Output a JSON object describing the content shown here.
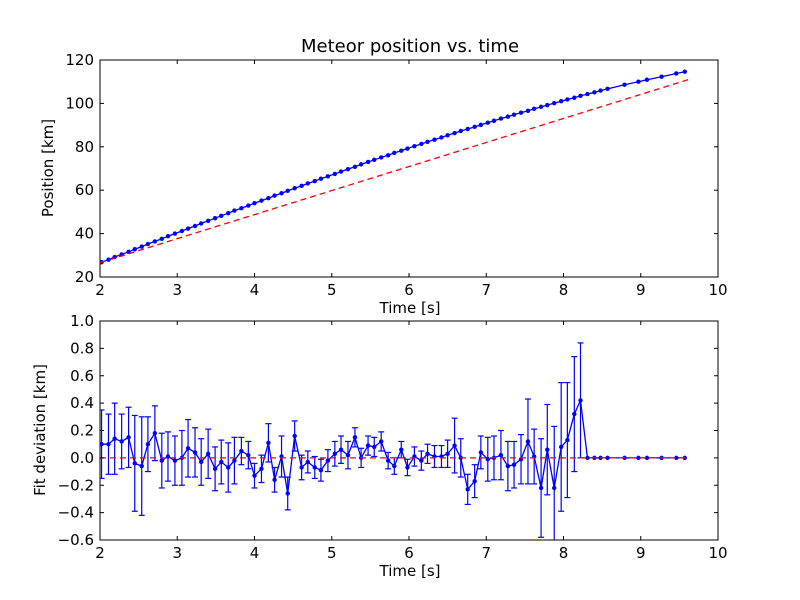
{
  "figure": {
    "background": "#ffffff"
  },
  "chart_data": [
    {
      "type": "line",
      "title": "Meteor position vs. time",
      "xlabel": "Time [s]",
      "ylabel": "Position [km]",
      "xlim": [
        2,
        10
      ],
      "ylim": [
        20,
        120
      ],
      "xticks": [
        "2",
        "3",
        "4",
        "5",
        "6",
        "7",
        "8",
        "9",
        "10"
      ],
      "yticks": [
        "20",
        "40",
        "60",
        "80",
        "100",
        "120"
      ],
      "grid": false,
      "series": [
        {
          "style": "solid line with point markers",
          "color": "#0000ff",
          "x": [
            2.02,
            2.11,
            2.19,
            2.28,
            2.37,
            2.45,
            2.54,
            2.62,
            2.71,
            2.8,
            2.88,
            2.97,
            3.06,
            3.14,
            3.23,
            3.31,
            3.4,
            3.49,
            3.57,
            3.66,
            3.74,
            3.83,
            3.92,
            4.0,
            4.09,
            4.18,
            4.26,
            4.35,
            4.43,
            4.52,
            4.61,
            4.69,
            4.78,
            4.86,
            4.95,
            5.04,
            5.12,
            5.21,
            5.3,
            5.38,
            5.47,
            5.55,
            5.64,
            5.73,
            5.81,
            5.9,
            5.98,
            6.07,
            6.16,
            6.24,
            6.33,
            6.42,
            6.5,
            6.59,
            6.67,
            6.76,
            6.85,
            6.93,
            7.02,
            7.1,
            7.19,
            7.28,
            7.36,
            7.45,
            7.54,
            7.62,
            7.71,
            7.79,
            7.88,
            7.97,
            8.05,
            8.14,
            8.22,
            8.31,
            8.4,
            8.48,
            8.57,
            8.79,
            8.97,
            9.08,
            9.27,
            9.46,
            9.57
          ],
          "y": [
            26.8,
            28.0,
            29.2,
            30.4,
            31.6,
            32.8,
            34.0,
            35.2,
            36.4,
            37.6,
            38.8,
            40.0,
            41.2,
            42.3,
            43.5,
            44.7,
            45.9,
            47.1,
            48.2,
            49.4,
            50.6,
            51.7,
            52.9,
            54.0,
            55.2,
            56.3,
            57.5,
            58.6,
            59.7,
            60.9,
            62.0,
            63.1,
            64.2,
            65.3,
            66.4,
            67.5,
            68.6,
            69.7,
            70.8,
            71.9,
            73.0,
            74.0,
            75.1,
            76.1,
            77.2,
            78.2,
            79.2,
            80.3,
            81.3,
            82.3,
            83.3,
            84.3,
            85.3,
            86.3,
            87.3,
            88.2,
            89.2,
            90.1,
            91.1,
            92.0,
            93.0,
            93.9,
            94.8,
            95.7,
            96.6,
            97.5,
            98.4,
            99.2,
            100.1,
            101.0,
            101.8,
            102.6,
            103.5,
            104.3,
            105.1,
            105.9,
            106.7,
            108.6,
            110.0,
            110.9,
            112.3,
            113.8,
            114.6
          ]
        },
        {
          "style": "dashed line",
          "color": "#ff0000",
          "x": [
            2.0,
            9.62
          ],
          "y": [
            26.6,
            111.0
          ]
        }
      ]
    },
    {
      "type": "line",
      "title": "",
      "xlabel": "Time [s]",
      "ylabel": "Fit deviation [km]",
      "xlim": [
        2,
        10
      ],
      "ylim": [
        -0.6,
        1.0
      ],
      "xticks": [
        "2",
        "3",
        "4",
        "5",
        "6",
        "7",
        "8",
        "9",
        "10"
      ],
      "yticks": [
        "−0.6",
        "−0.4",
        "−0.2",
        "0.0",
        "0.2",
        "0.4",
        "0.6",
        "0.8",
        "1.0"
      ],
      "grid": false,
      "series": [
        {
          "style": "solid line with point markers and vertical error bars",
          "color": "#0000ff",
          "x": [
            2.02,
            2.11,
            2.19,
            2.28,
            2.37,
            2.45,
            2.54,
            2.62,
            2.71,
            2.8,
            2.88,
            2.97,
            3.06,
            3.14,
            3.23,
            3.31,
            3.4,
            3.49,
            3.57,
            3.66,
            3.74,
            3.83,
            3.92,
            4.0,
            4.09,
            4.18,
            4.26,
            4.35,
            4.43,
            4.52,
            4.61,
            4.69,
            4.78,
            4.86,
            4.95,
            5.04,
            5.12,
            5.21,
            5.3,
            5.38,
            5.47,
            5.55,
            5.64,
            5.73,
            5.81,
            5.9,
            5.98,
            6.07,
            6.16,
            6.24,
            6.33,
            6.42,
            6.5,
            6.59,
            6.67,
            6.76,
            6.85,
            6.93,
            7.02,
            7.1,
            7.19,
            7.28,
            7.36,
            7.45,
            7.54,
            7.62,
            7.71,
            7.79,
            7.88,
            7.97,
            8.05,
            8.14,
            8.22,
            8.31,
            8.4,
            8.48,
            8.57,
            8.79,
            8.97,
            9.08,
            9.27,
            9.46,
            9.57
          ],
          "y": [
            0.1,
            0.1,
            0.14,
            0.12,
            0.15,
            -0.04,
            -0.06,
            0.1,
            0.18,
            -0.02,
            0.01,
            -0.02,
            0.0,
            0.07,
            0.04,
            -0.03,
            0.03,
            -0.08,
            -0.03,
            -0.07,
            -0.02,
            0.05,
            0.02,
            -0.13,
            -0.08,
            0.11,
            -0.16,
            0.01,
            -0.26,
            0.16,
            -0.07,
            -0.03,
            -0.07,
            -0.09,
            -0.02,
            0.03,
            0.06,
            0.02,
            0.15,
            0.0,
            0.09,
            0.08,
            0.12,
            -0.02,
            -0.06,
            0.06,
            -0.07,
            0.01,
            -0.02,
            0.03,
            0.01,
            0.01,
            0.03,
            0.09,
            0.0,
            -0.23,
            -0.17,
            0.04,
            -0.01,
            0.0,
            0.02,
            -0.06,
            -0.05,
            -0.01,
            0.12,
            0.01,
            -0.22,
            0.06,
            -0.22,
            0.08,
            0.13,
            0.32,
            0.42,
            0.0,
            0.0,
            0.0,
            0.0,
            0.0,
            0.0,
            0.0,
            0.0,
            0.0,
            0.0
          ],
          "yerr": [
            0.25,
            0.22,
            0.26,
            0.2,
            0.22,
            0.35,
            0.36,
            0.2,
            0.2,
            0.2,
            0.18,
            0.18,
            0.2,
            0.21,
            0.18,
            0.17,
            0.18,
            0.16,
            0.16,
            0.18,
            0.17,
            0.1,
            0.1,
            0.09,
            0.1,
            0.14,
            0.09,
            0.15,
            0.12,
            0.11,
            0.09,
            0.08,
            0.08,
            0.08,
            0.08,
            0.09,
            0.1,
            0.1,
            0.07,
            0.07,
            0.07,
            0.07,
            0.07,
            0.06,
            0.06,
            0.06,
            0.06,
            0.07,
            0.07,
            0.07,
            0.08,
            0.08,
            0.1,
            0.2,
            0.14,
            0.11,
            0.12,
            0.12,
            0.16,
            0.16,
            0.18,
            0.18,
            0.17,
            0.18,
            0.31,
            0.2,
            0.36,
            0.33,
            0.45,
            0.47,
            0.42,
            0.42,
            0.42,
            0,
            0,
            0,
            0,
            0,
            0,
            0,
            0,
            0,
            0
          ]
        },
        {
          "style": "dashed line",
          "color": "#ff0000",
          "x": [
            2.0,
            9.62
          ],
          "y": [
            0.0,
            0.0
          ]
        }
      ]
    }
  ]
}
